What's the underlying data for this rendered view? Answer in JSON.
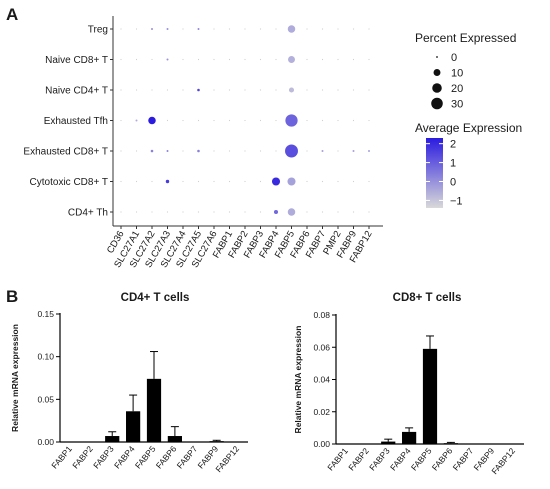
{
  "panels": {
    "a": "A",
    "b": "B"
  },
  "chart_data": [
    {
      "type": "scatter",
      "kind": "dot-plot",
      "genes": [
        "CD36",
        "SLC27A1",
        "SLC27A2",
        "SLC27A3",
        "SLC27A4",
        "SLC27A5",
        "SLC27A6",
        "FABP1",
        "FABP2",
        "FABP3",
        "FABP4",
        "FABP5",
        "FABP6",
        "FABP7",
        "PMP2",
        "FABP9",
        "FABP12"
      ],
      "cell_types": [
        "Treg",
        "Naive CD8+ T",
        "Naive CD4+ T",
        "Exhausted Tfh",
        "Exhausted CD8+ T",
        "Cytotoxic CD8+ T",
        "CD4+ Th"
      ],
      "size_legend": {
        "title": "Percent Expressed",
        "values": [
          0,
          10,
          20,
          30
        ],
        "labels": [
          "0",
          "10",
          "20",
          "30"
        ]
      },
      "color_legend": {
        "title": "Average Expression",
        "ticks": [
          2,
          1,
          0,
          -1
        ],
        "labels": [
          "2",
          "1",
          "0",
          "−1"
        ],
        "low_color": "#d9d9d9",
        "high_color": "#2b1be0"
      },
      "points": [
        {
          "cell": "Treg",
          "gene": "SLC27A2",
          "pct": 0.5,
          "avg": 0.0
        },
        {
          "cell": "Treg",
          "gene": "SLC27A3",
          "pct": 0.5,
          "avg": 0.0
        },
        {
          "cell": "Treg",
          "gene": "SLC27A5",
          "pct": 0.5,
          "avg": 0.2
        },
        {
          "cell": "Treg",
          "gene": "FABP5",
          "pct": 12,
          "avg": -0.5
        },
        {
          "cell": "Naive CD8+ T",
          "gene": "SLC27A3",
          "pct": 0.5,
          "avg": 0.0
        },
        {
          "cell": "Naive CD8+ T",
          "gene": "FABP5",
          "pct": 10,
          "avg": -0.6
        },
        {
          "cell": "Naive CD4+ T",
          "gene": "SLC27A5",
          "pct": 1,
          "avg": 1.5
        },
        {
          "cell": "Naive CD4+ T",
          "gene": "FABP5",
          "pct": 5,
          "avg": -0.8
        },
        {
          "cell": "Exhausted Tfh",
          "gene": "SLC27A1",
          "pct": 0.5,
          "avg": -0.5
        },
        {
          "cell": "Exhausted Tfh",
          "gene": "SLC27A2",
          "pct": 12,
          "avg": 2.3
        },
        {
          "cell": "Exhausted Tfh",
          "gene": "FABP5",
          "pct": 34,
          "avg": 0.9
        },
        {
          "cell": "Exhausted CD8+ T",
          "gene": "SLC27A2",
          "pct": 1,
          "avg": 0.3
        },
        {
          "cell": "Exhausted CD8+ T",
          "gene": "SLC27A3",
          "pct": 0.5,
          "avg": 0.3
        },
        {
          "cell": "Exhausted CD8+ T",
          "gene": "SLC27A5",
          "pct": 1,
          "avg": 0.3
        },
        {
          "cell": "Exhausted CD8+ T",
          "gene": "FABP5",
          "pct": 38,
          "avg": 1.3
        },
        {
          "cell": "Exhausted CD8+ T",
          "gene": "FABP7",
          "pct": 0.5,
          "avg": -0.3
        },
        {
          "cell": "Exhausted CD8+ T",
          "gene": "FABP9",
          "pct": 0.5,
          "avg": -0.3
        },
        {
          "cell": "Exhausted CD8+ T",
          "gene": "FABP12",
          "pct": 0.5,
          "avg": -0.3
        },
        {
          "cell": "Cytotoxic CD8+ T",
          "gene": "SLC27A3",
          "pct": 2,
          "avg": 1.7
        },
        {
          "cell": "Cytotoxic CD8+ T",
          "gene": "FABP4",
          "pct": 14,
          "avg": 2.0
        },
        {
          "cell": "Cytotoxic CD8+ T",
          "gene": "FABP5",
          "pct": 14,
          "avg": -0.3
        },
        {
          "cell": "CD4+ Th",
          "gene": "FABP4",
          "pct": 3,
          "avg": 0.8
        },
        {
          "cell": "CD4+ Th",
          "gene": "FABP5",
          "pct": 12,
          "avg": -0.5
        }
      ]
    },
    {
      "type": "bar",
      "title": "CD4+ T cells",
      "ylabel": "Relative mRNA expression",
      "categories": [
        "FABP1",
        "FABP2",
        "FABP3",
        "FABP4",
        "FABP5",
        "FABP6",
        "FABP7",
        "FABP9",
        "FABP12"
      ],
      "values": [
        0,
        0,
        0.007,
        0.036,
        0.074,
        0.007,
        0,
        0.001,
        0
      ],
      "errors": [
        0,
        0,
        0.005,
        0.019,
        0.032,
        0.011,
        0,
        0.001,
        0
      ],
      "ylim": [
        0,
        0.15
      ],
      "yticks": [
        0,
        0.05,
        0.1,
        0.15
      ],
      "ytick_labels": [
        "0.00",
        "0.05",
        "0.10",
        "0.15"
      ]
    },
    {
      "type": "bar",
      "title": "CD8+ T cells",
      "ylabel": "Relative mRNA expression",
      "categories": [
        "FABP1",
        "FABP2",
        "FABP3",
        "FABP4",
        "FABP5",
        "FABP6",
        "FABP7",
        "FABP9",
        "FABP12"
      ],
      "values": [
        0,
        0,
        0.0015,
        0.0075,
        0.059,
        0.0005,
        0,
        0,
        0
      ],
      "errors": [
        0,
        0,
        0.0015,
        0.0025,
        0.008,
        0.0005,
        0,
        0,
        0
      ],
      "ylim": [
        0,
        0.08
      ],
      "yticks": [
        0,
        0.02,
        0.04,
        0.06,
        0.08
      ],
      "ytick_labels": [
        "0.00",
        "0.02",
        "0.04",
        "0.06",
        "0.08"
      ]
    }
  ]
}
